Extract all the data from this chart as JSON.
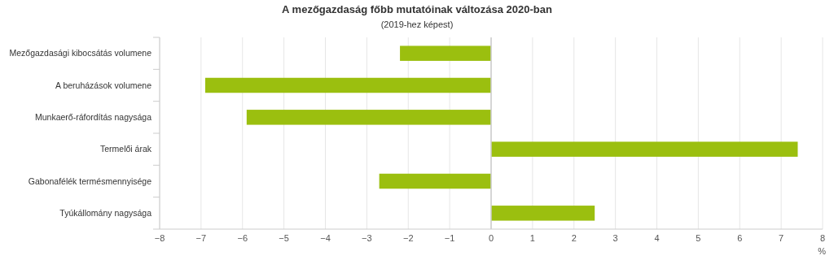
{
  "chart_data": {
    "type": "bar",
    "orientation": "horizontal",
    "title": "A mezőgazdaság főbb mutatóinak változása 2020-ban",
    "subtitle": "(2019-hez képest)",
    "xlabel": "%",
    "categories": [
      "Mezőgazdasági kibocsátás volumene",
      "A beruházások volumene",
      "Munkaerő-ráfordítás nagysága",
      "Termelői árak",
      "Gabonafélék termésmennyisége",
      "Tyúkállomány nagysága"
    ],
    "values": [
      -2.2,
      -6.9,
      -5.9,
      7.4,
      -2.7,
      2.5
    ],
    "color": "#9bbf0f",
    "xlim": [
      -8,
      8
    ],
    "xticks": [
      {
        "value": -8,
        "label": "−8"
      },
      {
        "value": -7,
        "label": "−7"
      },
      {
        "value": -6,
        "label": "−6"
      },
      {
        "value": -5,
        "label": "−5"
      },
      {
        "value": -4,
        "label": "−4"
      },
      {
        "value": -3,
        "label": "−3"
      },
      {
        "value": -2,
        "label": "−2"
      },
      {
        "value": -1,
        "label": "−1"
      },
      0,
      1,
      2,
      3,
      4,
      5,
      6,
      7,
      8
    ],
    "grid": "x"
  }
}
